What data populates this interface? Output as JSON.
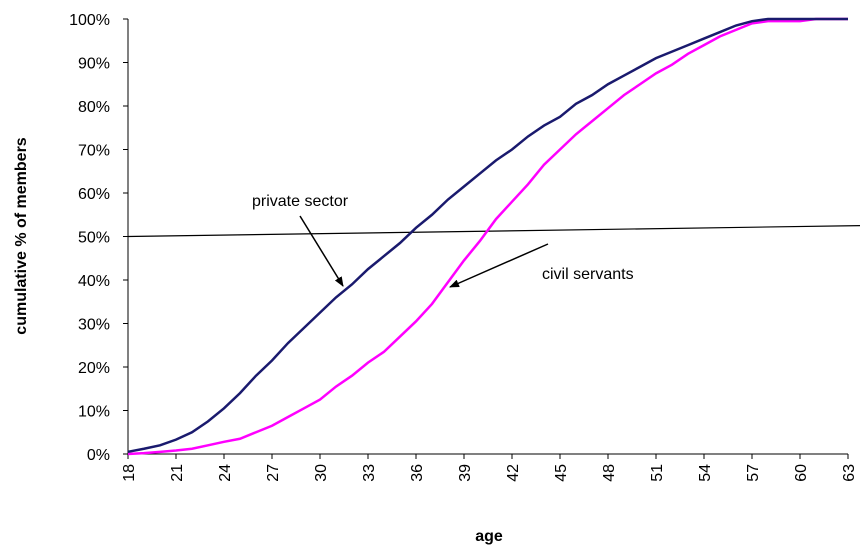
{
  "chart_data": {
    "type": "line",
    "x_label": "age",
    "y_label": "cumulative % of members",
    "x": [
      18,
      19,
      20,
      21,
      22,
      23,
      24,
      25,
      26,
      27,
      28,
      29,
      30,
      31,
      32,
      33,
      34,
      35,
      36,
      37,
      38,
      39,
      40,
      41,
      42,
      43,
      44,
      45,
      46,
      47,
      48,
      49,
      50,
      51,
      52,
      53,
      54,
      55,
      56,
      57,
      58,
      59,
      60,
      61,
      62,
      63
    ],
    "series": [
      {
        "name": "private sector",
        "color": "#1a1a6e",
        "values": [
          0.5,
          1.2,
          2,
          3.3,
          5,
          7.5,
          10.5,
          14,
          18,
          21.5,
          25.5,
          29,
          32.5,
          36,
          39,
          42.5,
          45.5,
          48.5,
          52,
          55,
          58.5,
          61.5,
          64.5,
          67.5,
          70,
          73,
          75.5,
          77.5,
          80.5,
          82.5,
          85,
          87,
          89,
          91,
          92.5,
          94,
          95.5,
          97,
          98.5,
          99.5,
          100,
          100,
          100,
          100,
          100,
          100
        ]
      },
      {
        "name": "civil servants",
        "color": "#ff00ff",
        "values": [
          0,
          0.2,
          0.5,
          0.8,
          1.2,
          2,
          2.8,
          3.5,
          5,
          6.5,
          8.5,
          10.5,
          12.5,
          15.5,
          18,
          21,
          23.5,
          27,
          30.5,
          34.5,
          39.5,
          44.5,
          49,
          54,
          58,
          62,
          66.5,
          70,
          73.5,
          76.5,
          79.5,
          82.5,
          85,
          87.5,
          89.5,
          92,
          94,
          96,
          97.5,
          99,
          99.5,
          99.5,
          99.5,
          100,
          100,
          100
        ]
      }
    ],
    "reference_line": {
      "x": [
        18,
        63.75
      ],
      "y": [
        50,
        52.5
      ]
    },
    "xlim": [
      18,
      63
    ],
    "xticks": [
      18,
      21,
      24,
      27,
      30,
      33,
      36,
      39,
      42,
      45,
      48,
      51,
      54,
      57,
      60,
      63
    ],
    "ylim": [
      0,
      100
    ],
    "yticks": [
      {
        "value": 0,
        "label": "0%"
      },
      {
        "value": 10,
        "label": "10%"
      },
      {
        "value": 20,
        "label": "20%"
      },
      {
        "value": 30,
        "label": "30%"
      },
      {
        "value": 40,
        "label": "40%"
      },
      {
        "value": 50,
        "label": "50%"
      },
      {
        "value": 60,
        "label": "60%"
      },
      {
        "value": 70,
        "label": "70%"
      },
      {
        "value": 80,
        "label": "80%"
      },
      {
        "value": 90,
        "label": "90%"
      },
      {
        "value": 100,
        "label": "100%"
      }
    ],
    "grid": false,
    "legend": "annotations"
  }
}
